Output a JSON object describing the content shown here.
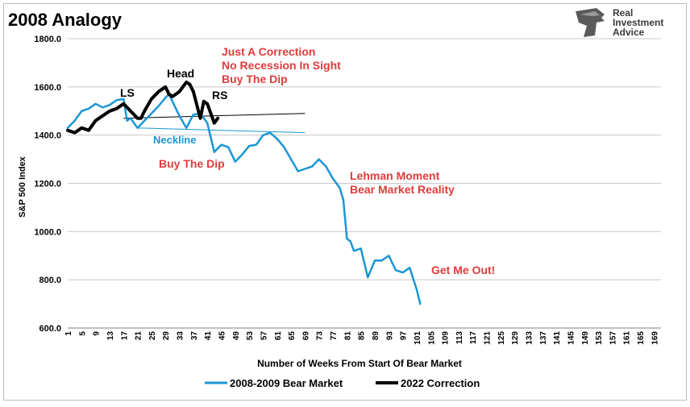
{
  "title": "2008 Analogy",
  "brand": {
    "line1": "Real",
    "line2": "Investment",
    "line3": "Advice",
    "logo": "eagle-head-icon"
  },
  "chart_data": {
    "type": "line",
    "ylabel": "S&P 500 Index",
    "xlabel": "Number of Weeks From Start Of Bear Market",
    "ylim": [
      600,
      1800
    ],
    "yticks": [
      "600.0",
      "800.0",
      "1000.0",
      "1200.0",
      "1400.0",
      "1600.0",
      "1800.0"
    ],
    "xlim": [
      1,
      171
    ],
    "xticks": [
      1,
      5,
      9,
      13,
      17,
      21,
      25,
      29,
      33,
      37,
      41,
      45,
      49,
      53,
      57,
      61,
      65,
      69,
      73,
      77,
      81,
      85,
      89,
      93,
      97,
      101,
      105,
      109,
      113,
      117,
      121,
      125,
      129,
      133,
      137,
      141,
      145,
      149,
      153,
      157,
      161,
      165,
      169
    ],
    "grid": "horizontal",
    "legend_position": "bottom",
    "series": [
      {
        "name": "2008-2009 Bear Market",
        "color": "#1a96d4",
        "x": [
          1,
          3,
          5,
          7,
          9,
          11,
          13,
          15,
          17,
          18,
          19,
          21,
          23,
          25,
          27,
          29,
          30,
          31,
          33,
          35,
          37,
          39,
          41,
          43,
          45,
          47,
          49,
          51,
          53,
          55,
          57,
          59,
          61,
          63,
          65,
          67,
          69,
          71,
          73,
          75,
          77,
          78,
          79,
          80,
          81,
          82,
          83,
          85,
          87,
          89,
          91,
          93,
          95,
          97,
          99,
          101,
          102
        ],
        "y": [
          1430,
          1460,
          1500,
          1510,
          1530,
          1515,
          1525,
          1545,
          1550,
          1460,
          1470,
          1430,
          1460,
          1490,
          1520,
          1555,
          1570,
          1540,
          1480,
          1430,
          1485,
          1490,
          1450,
          1330,
          1360,
          1350,
          1290,
          1320,
          1355,
          1360,
          1400,
          1410,
          1385,
          1350,
          1300,
          1250,
          1260,
          1270,
          1300,
          1270,
          1220,
          1200,
          1180,
          1130,
          970,
          960,
          920,
          930,
          810,
          880,
          880,
          900,
          840,
          830,
          850,
          760,
          700
        ]
      },
      {
        "name": "2022 Correction",
        "color": "#000000",
        "x": [
          1,
          3,
          5,
          7,
          9,
          11,
          13,
          15,
          17,
          19,
          21,
          22,
          23,
          25,
          27,
          29,
          30,
          31,
          33,
          35,
          36,
          37,
          39,
          40,
          41,
          42,
          43,
          44
        ],
        "y": [
          1420,
          1410,
          1430,
          1420,
          1460,
          1480,
          1500,
          1510,
          1530,
          1500,
          1470,
          1470,
          1500,
          1550,
          1580,
          1600,
          1570,
          1560,
          1580,
          1620,
          1610,
          1580,
          1470,
          1540,
          1530,
          1490,
          1450,
          1470
        ]
      }
    ],
    "trendlines": [
      {
        "label": "neckline-black",
        "color": "#000000",
        "x": [
          17,
          69
        ],
        "y": [
          1470,
          1490
        ]
      },
      {
        "label": "neckline-blue",
        "color": "#1a96d4",
        "x": [
          21,
          69
        ],
        "y": [
          1430,
          1410
        ]
      }
    ],
    "annotations": [
      {
        "text": "Just A Correction",
        "color": "#e23b3b"
      },
      {
        "text": "No Recession In Sight",
        "color": "#e23b3b"
      },
      {
        "text": "Buy The Dip",
        "color": "#e23b3b"
      },
      {
        "text": "Head",
        "color": "#000000"
      },
      {
        "text": "LS",
        "color": "#000000"
      },
      {
        "text": "RS",
        "color": "#000000"
      },
      {
        "text": "Neckline",
        "color": "#1a96d4"
      },
      {
        "text": "Buy The Dip",
        "color": "#e23b3b"
      },
      {
        "text": "Lehman Moment",
        "color": "#e23b3b"
      },
      {
        "text": "Bear Market Reality",
        "color": "#e23b3b"
      },
      {
        "text": "Get Me Out!",
        "color": "#e23b3b"
      }
    ]
  }
}
